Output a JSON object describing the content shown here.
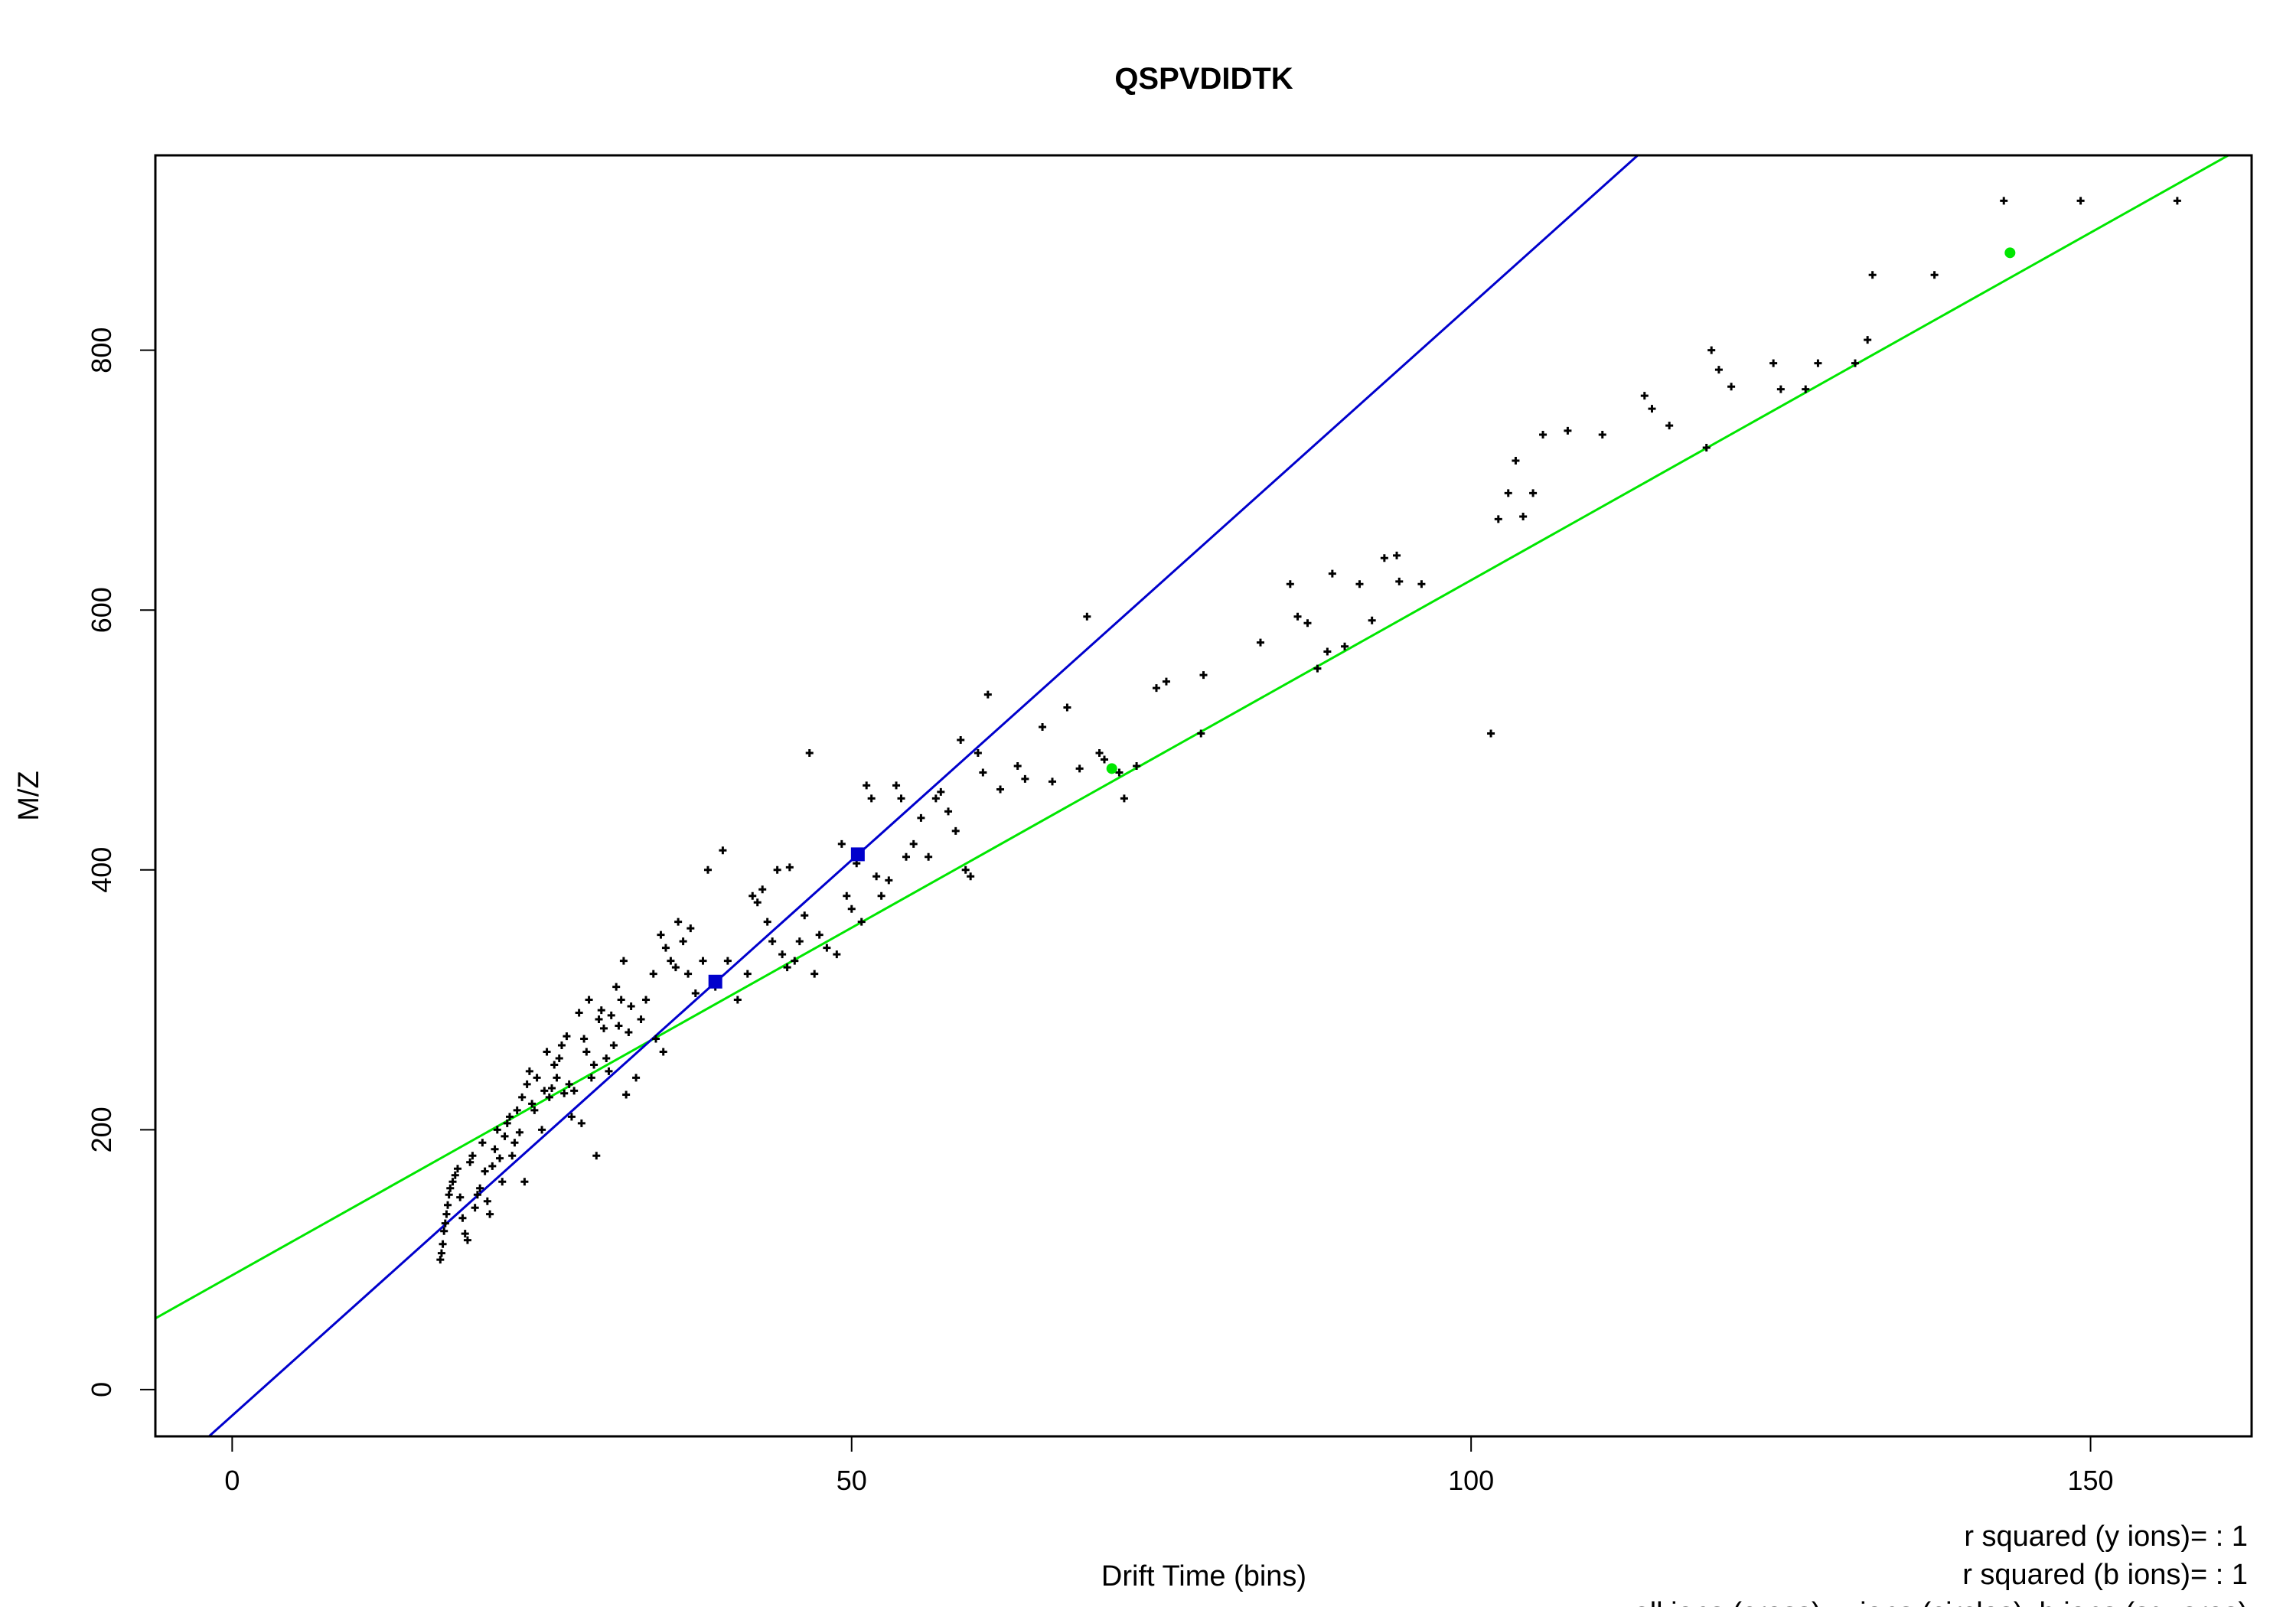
{
  "chart_data": {
    "type": "scatter",
    "title": "QSPVDIDTK",
    "xlabel": "Drift Time (bins)",
    "ylabel": "M/Z",
    "xlim": [
      -6.2,
      163
    ],
    "ylim": [
      -36,
      950
    ],
    "x_ticks": [
      "0",
      "50",
      "100",
      "150"
    ],
    "y_ticks": [
      "0",
      "200",
      "400",
      "600",
      "800"
    ],
    "grid": false,
    "annotations": [
      "r squared (y ions)= : 1",
      "r squared (b ions)= : 1",
      "all ions (cross), y ions (circles), b ions (squares)"
    ],
    "colors": {
      "all": "#000000",
      "y_fit": "#00e600",
      "b_fit": "#0000cc"
    },
    "fit_lines": [
      {
        "label": "y ions",
        "slope": 5.35,
        "intercept": 88
      },
      {
        "label": "b ions",
        "slope": 8.55,
        "intercept": -20
      }
    ],
    "y_ions": [
      [
        71,
        478
      ],
      [
        143.5,
        875
      ]
    ],
    "b_ions": [
      [
        39,
        314
      ],
      [
        50.5,
        412
      ]
    ],
    "all_ions": [
      [
        16.8,
        100
      ],
      [
        16.9,
        105
      ],
      [
        17.0,
        112
      ],
      [
        17.1,
        122
      ],
      [
        17.2,
        128
      ],
      [
        17.3,
        135
      ],
      [
        17.4,
        142
      ],
      [
        17.5,
        150
      ],
      [
        17.6,
        155
      ],
      [
        17.8,
        160
      ],
      [
        18.0,
        165
      ],
      [
        18.2,
        170
      ],
      [
        18.4,
        148
      ],
      [
        18.6,
        132
      ],
      [
        18.8,
        120
      ],
      [
        19.0,
        115
      ],
      [
        19.2,
        175
      ],
      [
        19.4,
        180
      ],
      [
        19.6,
        140
      ],
      [
        19.8,
        150
      ],
      [
        20.0,
        155
      ],
      [
        20.2,
        190
      ],
      [
        20.4,
        168
      ],
      [
        20.6,
        145
      ],
      [
        20.8,
        135
      ],
      [
        21.0,
        172
      ],
      [
        21.2,
        185
      ],
      [
        21.4,
        200
      ],
      [
        21.6,
        178
      ],
      [
        21.8,
        160
      ],
      [
        22.0,
        195
      ],
      [
        22.2,
        205
      ],
      [
        22.4,
        210
      ],
      [
        22.6,
        180
      ],
      [
        22.8,
        190
      ],
      [
        23.0,
        215
      ],
      [
        23.2,
        198
      ],
      [
        23.4,
        225
      ],
      [
        23.6,
        160
      ],
      [
        23.8,
        235
      ],
      [
        24.0,
        245
      ],
      [
        24.2,
        220
      ],
      [
        24.4,
        215
      ],
      [
        24.6,
        240
      ],
      [
        25.0,
        200
      ],
      [
        25.2,
        230
      ],
      [
        25.4,
        260
      ],
      [
        25.6,
        225
      ],
      [
        25.8,
        232
      ],
      [
        26.0,
        250
      ],
      [
        26.2,
        240
      ],
      [
        26.4,
        255
      ],
      [
        26.6,
        265
      ],
      [
        26.8,
        228
      ],
      [
        27.0,
        272
      ],
      [
        27.2,
        235
      ],
      [
        27.4,
        210
      ],
      [
        27.6,
        230
      ],
      [
        28.0,
        290
      ],
      [
        28.2,
        205
      ],
      [
        28.4,
        270
      ],
      [
        28.6,
        260
      ],
      [
        28.8,
        300
      ],
      [
        29.0,
        240
      ],
      [
        29.2,
        250
      ],
      [
        29.4,
        180
      ],
      [
        29.6,
        285
      ],
      [
        29.8,
        292
      ],
      [
        30.0,
        278
      ],
      [
        30.2,
        255
      ],
      [
        30.4,
        245
      ],
      [
        30.6,
        288
      ],
      [
        30.8,
        265
      ],
      [
        31.0,
        310
      ],
      [
        31.2,
        280
      ],
      [
        31.4,
        300
      ],
      [
        31.6,
        330
      ],
      [
        31.8,
        227
      ],
      [
        32.0,
        275
      ],
      [
        32.2,
        295
      ],
      [
        32.6,
        240
      ],
      [
        33.0,
        285
      ],
      [
        33.4,
        300
      ],
      [
        34.0,
        320
      ],
      [
        34.2,
        270
      ],
      [
        34.6,
        350
      ],
      [
        34.8,
        260
      ],
      [
        35.0,
        340
      ],
      [
        35.4,
        330
      ],
      [
        35.8,
        325
      ],
      [
        36.0,
        360
      ],
      [
        36.4,
        345
      ],
      [
        36.8,
        320
      ],
      [
        37.0,
        355
      ],
      [
        37.4,
        305
      ],
      [
        38.0,
        330
      ],
      [
        38.4,
        400
      ],
      [
        39.0,
        310
      ],
      [
        39.6,
        415
      ],
      [
        40.0,
        330
      ],
      [
        40.8,
        300
      ],
      [
        41.6,
        320
      ],
      [
        42.0,
        380
      ],
      [
        42.4,
        375
      ],
      [
        42.8,
        385
      ],
      [
        43.2,
        360
      ],
      [
        43.6,
        345
      ],
      [
        44.0,
        400
      ],
      [
        44.4,
        335
      ],
      [
        44.8,
        325
      ],
      [
        45.0,
        402
      ],
      [
        45.4,
        330
      ],
      [
        45.8,
        345
      ],
      [
        46.2,
        365
      ],
      [
        46.6,
        490
      ],
      [
        47.0,
        320
      ],
      [
        47.4,
        350
      ],
      [
        48.0,
        340
      ],
      [
        48.8,
        335
      ],
      [
        49.2,
        420
      ],
      [
        49.6,
        380
      ],
      [
        50.0,
        370
      ],
      [
        50.4,
        405
      ],
      [
        50.8,
        360
      ],
      [
        51.2,
        465
      ],
      [
        51.6,
        455
      ],
      [
        52.0,
        395
      ],
      [
        52.4,
        380
      ],
      [
        53.0,
        392
      ],
      [
        53.6,
        465
      ],
      [
        54.0,
        455
      ],
      [
        54.4,
        410
      ],
      [
        55.0,
        420
      ],
      [
        55.6,
        440
      ],
      [
        56.2,
        410
      ],
      [
        56.8,
        455
      ],
      [
        57.2,
        460
      ],
      [
        57.8,
        445
      ],
      [
        58.4,
        430
      ],
      [
        58.8,
        500
      ],
      [
        59.2,
        400
      ],
      [
        59.6,
        395
      ],
      [
        60.2,
        490
      ],
      [
        60.6,
        475
      ],
      [
        61.0,
        535
      ],
      [
        62.0,
        462
      ],
      [
        63.4,
        480
      ],
      [
        64.0,
        470
      ],
      [
        65.4,
        510
      ],
      [
        66.2,
        468
      ],
      [
        67.4,
        525
      ],
      [
        68.4,
        478
      ],
      [
        69.0,
        595
      ],
      [
        70.0,
        490
      ],
      [
        70.4,
        485
      ],
      [
        71.6,
        475
      ],
      [
        72.0,
        455
      ],
      [
        73.0,
        480
      ],
      [
        74.6,
        540
      ],
      [
        75.4,
        545
      ],
      [
        78.2,
        505
      ],
      [
        78.4,
        550
      ],
      [
        83.0,
        575
      ],
      [
        85.4,
        620
      ],
      [
        86.0,
        595
      ],
      [
        86.8,
        590
      ],
      [
        87.6,
        555
      ],
      [
        88.4,
        568
      ],
      [
        88.8,
        628
      ],
      [
        89.8,
        572
      ],
      [
        91.0,
        620
      ],
      [
        92.0,
        592
      ],
      [
        93.0,
        640
      ],
      [
        94.0,
        642
      ],
      [
        94.2,
        622
      ],
      [
        96.0,
        620
      ],
      [
        101.6,
        505
      ],
      [
        102.2,
        670
      ],
      [
        103.0,
        690
      ],
      [
        103.6,
        715
      ],
      [
        104.2,
        672
      ],
      [
        105.0,
        690
      ],
      [
        105.8,
        735
      ],
      [
        107.8,
        738
      ],
      [
        110.6,
        735
      ],
      [
        114.0,
        765
      ],
      [
        114.6,
        755
      ],
      [
        116.0,
        742
      ],
      [
        119.0,
        725
      ],
      [
        119.4,
        800
      ],
      [
        120.0,
        785
      ],
      [
        121.0,
        772
      ],
      [
        124.4,
        790
      ],
      [
        125.0,
        770
      ],
      [
        127.0,
        770
      ],
      [
        128.0,
        790
      ],
      [
        131.0,
        790
      ],
      [
        132.0,
        808
      ],
      [
        132.4,
        858
      ],
      [
        137.4,
        858
      ],
      [
        143.0,
        915
      ],
      [
        149.2,
        915
      ],
      [
        157.0,
        915
      ]
    ]
  }
}
